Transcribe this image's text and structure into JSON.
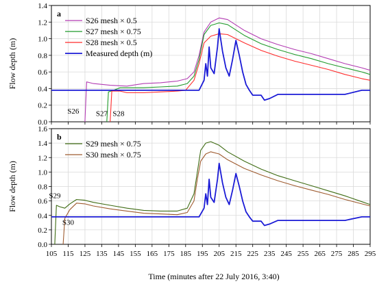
{
  "xlabel": "Time (minutes after 22 July 2016, 3:40)",
  "x_ticks": [
    105,
    115,
    125,
    135,
    145,
    155,
    165,
    175,
    185,
    195,
    205,
    215,
    225,
    235,
    245,
    255,
    265,
    275,
    285,
    295
  ],
  "colors": {
    "S26": "#b23bb2",
    "S27": "#1f9a2a",
    "S28": "#ff2a2a",
    "S29": "#3e6b12",
    "S30": "#9e5a2e",
    "measured": "#1a1ad6"
  },
  "chart_data": [
    {
      "type": "line",
      "panel_label": "a",
      "ylabel": "Flow depth (m)",
      "xlim": [
        105,
        295
      ],
      "ylim": [
        0.0,
        1.4
      ],
      "y_ticks": [
        0.0,
        0.2,
        0.4,
        0.6,
        0.8,
        1.0,
        1.2,
        1.4
      ],
      "grid": true,
      "legend_position": "top-left",
      "legend": [
        {
          "series": "S26",
          "text": "S26  mesh × 0.5"
        },
        {
          "series": "S27",
          "text": "S27  mesh × 0.75"
        },
        {
          "series": "S28",
          "text": "S28  mesh × 0.5"
        },
        {
          "series": "measured",
          "text": "Measured depth (m)"
        }
      ],
      "annotations": [
        {
          "text": "S26",
          "x": 118,
          "y": 0.1
        },
        {
          "text": "S27",
          "x": 135,
          "y": 0.07
        },
        {
          "text": "S28",
          "x": 145,
          "y": 0.07
        }
      ],
      "series": [
        {
          "name": "S26",
          "color_key": "S26",
          "points": [
            [
              125,
              0
            ],
            [
              126,
              0.48
            ],
            [
              130,
              0.46
            ],
            [
              140,
              0.44
            ],
            [
              150,
              0.43
            ],
            [
              160,
              0.46
            ],
            [
              170,
              0.47
            ],
            [
              180,
              0.49
            ],
            [
              186,
              0.52
            ],
            [
              190,
              0.6
            ],
            [
              193,
              0.8
            ],
            [
              196,
              1.08
            ],
            [
              200,
              1.2
            ],
            [
              205,
              1.25
            ],
            [
              210,
              1.23
            ],
            [
              220,
              1.1
            ],
            [
              230,
              1.0
            ],
            [
              240,
              0.93
            ],
            [
              250,
              0.87
            ],
            [
              260,
              0.82
            ],
            [
              270,
              0.76
            ],
            [
              280,
              0.7
            ],
            [
              290,
              0.65
            ],
            [
              295,
              0.62
            ]
          ]
        },
        {
          "name": "S27",
          "color_key": "S27",
          "points": [
            [
              138,
              0
            ],
            [
              139,
              0.36
            ],
            [
              142,
              0.38
            ],
            [
              146,
              0.41
            ],
            [
              150,
              0.41
            ],
            [
              160,
              0.41
            ],
            [
              170,
              0.42
            ],
            [
              180,
              0.43
            ],
            [
              186,
              0.46
            ],
            [
              190,
              0.55
            ],
            [
              193,
              0.75
            ],
            [
              196,
              1.05
            ],
            [
              200,
              1.16
            ],
            [
              205,
              1.19
            ],
            [
              210,
              1.17
            ],
            [
              220,
              1.04
            ],
            [
              230,
              0.94
            ],
            [
              240,
              0.87
            ],
            [
              250,
              0.81
            ],
            [
              260,
              0.76
            ],
            [
              270,
              0.7
            ],
            [
              280,
              0.65
            ],
            [
              290,
              0.6
            ],
            [
              295,
              0.57
            ]
          ]
        },
        {
          "name": "S28",
          "color_key": "S28",
          "points": [
            [
              140,
              0
            ],
            [
              141,
              0.37
            ],
            [
              146,
              0.37
            ],
            [
              150,
              0.35
            ],
            [
              160,
              0.35
            ],
            [
              170,
              0.36
            ],
            [
              180,
              0.37
            ],
            [
              185,
              0.38
            ],
            [
              190,
              0.5
            ],
            [
              193,
              0.7
            ],
            [
              196,
              0.95
            ],
            [
              200,
              1.03
            ],
            [
              205,
              1.06
            ],
            [
              210,
              1.05
            ],
            [
              220,
              0.95
            ],
            [
              230,
              0.86
            ],
            [
              240,
              0.79
            ],
            [
              250,
              0.73
            ],
            [
              260,
              0.68
            ],
            [
              270,
              0.63
            ],
            [
              280,
              0.57
            ],
            [
              290,
              0.52
            ],
            [
              295,
              0.5
            ]
          ]
        },
        {
          "name": "Measured depth (m)",
          "color_key": "measured",
          "points": [
            [
              105,
              0.38
            ],
            [
              115,
              0.38
            ],
            [
              125,
              0.38
            ],
            [
              135,
              0.38
            ],
            [
              145,
              0.38
            ],
            [
              155,
              0.38
            ],
            [
              165,
              0.38
            ],
            [
              175,
              0.38
            ],
            [
              185,
              0.38
            ],
            [
              193,
              0.38
            ],
            [
              196,
              0.5
            ],
            [
              197,
              0.7
            ],
            [
              198,
              0.55
            ],
            [
              199,
              0.9
            ],
            [
              200,
              0.65
            ],
            [
              202,
              0.58
            ],
            [
              204,
              0.9
            ],
            [
              205,
              1.12
            ],
            [
              207,
              0.85
            ],
            [
              209,
              0.65
            ],
            [
              211,
              0.55
            ],
            [
              213,
              0.75
            ],
            [
              215,
              0.98
            ],
            [
              217,
              0.8
            ],
            [
              219,
              0.6
            ],
            [
              221,
              0.45
            ],
            [
              223,
              0.38
            ],
            [
              225,
              0.32
            ],
            [
              230,
              0.32
            ],
            [
              232,
              0.26
            ],
            [
              235,
              0.28
            ],
            [
              240,
              0.33
            ],
            [
              250,
              0.33
            ],
            [
              260,
              0.33
            ],
            [
              270,
              0.33
            ],
            [
              280,
              0.33
            ],
            [
              290,
              0.38
            ],
            [
              295,
              0.38
            ]
          ]
        }
      ]
    },
    {
      "type": "line",
      "panel_label": "b",
      "ylabel": "Flow depth (m)",
      "xlim": [
        105,
        295
      ],
      "ylim": [
        0.0,
        1.6
      ],
      "y_ticks": [
        0.0,
        0.2,
        0.4,
        0.6,
        0.8,
        1.0,
        1.2,
        1.4,
        1.6
      ],
      "grid": true,
      "legend_position": "top-left",
      "legend": [
        {
          "series": "S29",
          "text": "S29   mesh × 0.75"
        },
        {
          "series": "S30",
          "text": "S30   mesh × 0.75"
        }
      ],
      "annotations": [
        {
          "text": "S29",
          "x": 107,
          "y": 0.64
        },
        {
          "text": "S30",
          "x": 115,
          "y": 0.27
        }
      ],
      "series": [
        {
          "name": "S29",
          "color_key": "S29",
          "points": [
            [
              107,
              0
            ],
            [
              108,
              0.54
            ],
            [
              110,
              0.52
            ],
            [
              113,
              0.5
            ],
            [
              116,
              0.56
            ],
            [
              120,
              0.62
            ],
            [
              125,
              0.61
            ],
            [
              130,
              0.58
            ],
            [
              140,
              0.54
            ],
            [
              150,
              0.5
            ],
            [
              160,
              0.47
            ],
            [
              170,
              0.46
            ],
            [
              180,
              0.46
            ],
            [
              186,
              0.5
            ],
            [
              190,
              0.7
            ],
            [
              192,
              1.0
            ],
            [
              194,
              1.3
            ],
            [
              197,
              1.4
            ],
            [
              200,
              1.42
            ],
            [
              205,
              1.37
            ],
            [
              210,
              1.28
            ],
            [
              220,
              1.15
            ],
            [
              230,
              1.04
            ],
            [
              240,
              0.95
            ],
            [
              250,
              0.88
            ],
            [
              260,
              0.81
            ],
            [
              270,
              0.74
            ],
            [
              280,
              0.67
            ],
            [
              290,
              0.59
            ],
            [
              295,
              0.55
            ]
          ]
        },
        {
          "name": "S30",
          "color_key": "S30",
          "points": [
            [
              112,
              0
            ],
            [
              113,
              0.36
            ],
            [
              116,
              0.48
            ],
            [
              120,
              0.57
            ],
            [
              125,
              0.56
            ],
            [
              130,
              0.53
            ],
            [
              140,
              0.49
            ],
            [
              150,
              0.46
            ],
            [
              160,
              0.43
            ],
            [
              170,
              0.42
            ],
            [
              180,
              0.41
            ],
            [
              186,
              0.44
            ],
            [
              190,
              0.6
            ],
            [
              192,
              0.9
            ],
            [
              194,
              1.15
            ],
            [
              197,
              1.25
            ],
            [
              200,
              1.28
            ],
            [
              205,
              1.25
            ],
            [
              210,
              1.17
            ],
            [
              220,
              1.05
            ],
            [
              230,
              0.96
            ],
            [
              240,
              0.88
            ],
            [
              250,
              0.81
            ],
            [
              260,
              0.75
            ],
            [
              270,
              0.69
            ],
            [
              280,
              0.62
            ],
            [
              290,
              0.56
            ],
            [
              295,
              0.53
            ]
          ]
        },
        {
          "name": "Measured depth (m)",
          "color_key": "measured",
          "points": [
            [
              105,
              0.38
            ],
            [
              115,
              0.38
            ],
            [
              125,
              0.38
            ],
            [
              135,
              0.38
            ],
            [
              145,
              0.38
            ],
            [
              155,
              0.38
            ],
            [
              165,
              0.38
            ],
            [
              175,
              0.38
            ],
            [
              185,
              0.38
            ],
            [
              193,
              0.38
            ],
            [
              196,
              0.5
            ],
            [
              197,
              0.7
            ],
            [
              198,
              0.55
            ],
            [
              199,
              0.9
            ],
            [
              200,
              0.65
            ],
            [
              202,
              0.58
            ],
            [
              204,
              0.9
            ],
            [
              205,
              1.12
            ],
            [
              207,
              0.85
            ],
            [
              209,
              0.65
            ],
            [
              211,
              0.55
            ],
            [
              213,
              0.75
            ],
            [
              215,
              0.98
            ],
            [
              217,
              0.8
            ],
            [
              219,
              0.6
            ],
            [
              221,
              0.45
            ],
            [
              223,
              0.38
            ],
            [
              225,
              0.32
            ],
            [
              230,
              0.32
            ],
            [
              232,
              0.26
            ],
            [
              235,
              0.28
            ],
            [
              240,
              0.33
            ],
            [
              250,
              0.33
            ],
            [
              260,
              0.33
            ],
            [
              270,
              0.33
            ],
            [
              280,
              0.33
            ],
            [
              290,
              0.38
            ],
            [
              295,
              0.38
            ]
          ]
        }
      ]
    }
  ]
}
